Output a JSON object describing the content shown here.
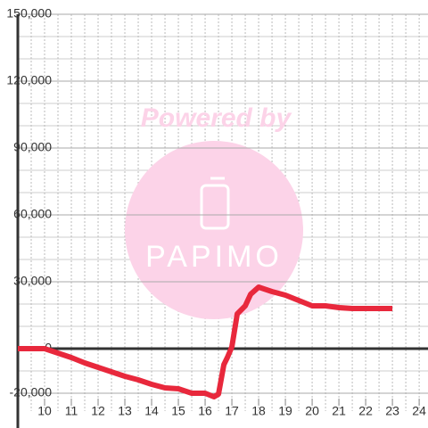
{
  "chart_data": {
    "type": "line",
    "watermark": {
      "top": "Powered by",
      "brand": "PAPIMO"
    },
    "x": [
      9,
      10,
      10.5,
      11,
      11.5,
      12,
      12.5,
      13,
      13.5,
      14,
      14.5,
      15,
      15.5,
      16,
      16.33,
      16.5,
      16.7,
      16.83,
      17,
      17.2,
      17.5,
      17.7,
      18,
      18.5,
      19,
      19.5,
      20,
      20.5,
      21,
      21.5,
      23
    ],
    "series": [
      {
        "color": "#e8283c",
        "values": [
          0,
          0,
          -2000,
          -4000,
          -6400,
          -8400,
          -10400,
          -12400,
          -14000,
          -16000,
          -17600,
          -18000,
          -20000,
          -20000,
          -21600,
          -20400,
          -7200,
          -4000,
          800,
          15600,
          19200,
          24400,
          27600,
          25600,
          24000,
          21600,
          19200,
          19200,
          18400,
          18000,
          18000
        ]
      }
    ],
    "xlim": [
      9,
      24.33
    ],
    "xticks": [
      10,
      11,
      12,
      13,
      14,
      15,
      16,
      17,
      18,
      19,
      20,
      21,
      22,
      23,
      24
    ],
    "ylim": [
      -24000,
      150000
    ],
    "yticks": [
      {
        "value": -20000,
        "label": "-20,000"
      },
      0,
      {
        "value": 30000,
        "label": "30,000"
      },
      {
        "value": 60000,
        "label": "60,000"
      },
      {
        "value": 90000,
        "label": "90,000"
      },
      {
        "value": 120000,
        "label": "120,000"
      },
      {
        "value": 150000,
        "label": "150,000"
      }
    ],
    "xgrid": [
      9.5,
      10,
      10.5,
      11,
      11.5,
      12,
      12.5,
      13,
      13.5,
      14,
      14.5,
      15,
      15.5,
      16,
      16.5,
      17,
      17.5,
      18,
      18.5,
      19,
      19.5,
      20,
      20.5,
      21,
      21.5,
      22,
      22.5,
      23,
      23.5,
      24
    ],
    "ygrid": [
      -20000,
      -10000,
      10000,
      20000,
      30000,
      40000,
      50000,
      60000,
      70000,
      80000,
      90000,
      100000,
      110000,
      120000,
      130000,
      140000,
      150000
    ],
    "grid": true
  }
}
